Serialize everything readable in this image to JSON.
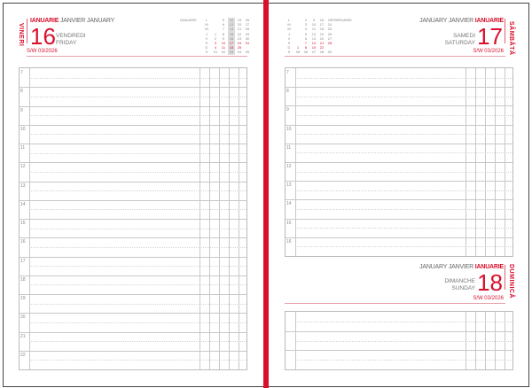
{
  "left_page": {
    "weekday_ro": "VINERI",
    "month_ro": "IANUARIE",
    "month_fr_en": "JANVIER JANUARY",
    "day": "16",
    "weekday_fr": "VENDREDI",
    "weekday_en": "FRIDAY",
    "week": "S/W 03/2026",
    "calendar": {
      "month": "IANUARIE",
      "letters": [
        "L",
        "M",
        "M",
        "J",
        "V",
        "S",
        "D",
        "S"
      ],
      "weeks": [
        [
          "",
          "",
          "",
          "1",
          "2",
          "3",
          "4",
          "01"
        ],
        [
          "5",
          "6",
          "7",
          "8",
          "9",
          "10",
          "11",
          "02"
        ],
        [
          "12",
          "13",
          "14",
          "15",
          "16",
          "17",
          "18",
          "03"
        ],
        [
          "19",
          "20",
          "21",
          "22",
          "23",
          "24",
          "25",
          "04"
        ],
        [
          "26",
          "27",
          "28",
          "29",
          "30",
          "31",
          "",
          "05"
        ]
      ],
      "highlight_week": 2
    },
    "hours": [
      "7",
      "8",
      "9",
      "10",
      "11",
      "12",
      "13",
      "14",
      "15",
      "16",
      "17",
      "18",
      "19",
      "20",
      "21",
      "22"
    ]
  },
  "right_page": {
    "calendar": {
      "month": "FEBRUARIE",
      "letters": [
        "L",
        "M",
        "M",
        "J",
        "V",
        "S",
        "D",
        "S"
      ],
      "weeks": [
        [
          "",
          "",
          "",
          "",
          "",
          "",
          "1",
          "05"
        ],
        [
          "2",
          "3",
          "4",
          "5",
          "6",
          "7",
          "8",
          "06"
        ],
        [
          "9",
          "10",
          "11",
          "12",
          "13",
          "14",
          "15",
          "07"
        ],
        [
          "16",
          "17",
          "18",
          "19",
          "20",
          "21",
          "22",
          "08"
        ],
        [
          "23",
          "24",
          "25",
          "26",
          "27",
          "28",
          "",
          "09"
        ]
      ]
    },
    "sat": {
      "weekday_ro": "SÂMBĂTĂ",
      "month_ro": "IANUARIE",
      "month_fr_en": "JANUARY JANVIER",
      "day": "17",
      "weekday_fr": "SAMEDI",
      "weekday_en": "SATURDAY",
      "week": "S/W 03/2026"
    },
    "sun": {
      "weekday_ro": "DUMINICĂ",
      "month_ro": "IANUARIE",
      "month_fr_en": "JANUARY JANVIER",
      "day": "18",
      "weekday_fr": "DIMANCHE",
      "weekday_en": "SUNDAY",
      "week": "S/W 03/2026"
    },
    "hours": [
      "7",
      "8",
      "9",
      "10",
      "11",
      "12",
      "13",
      "14",
      "15",
      "16"
    ]
  },
  "colors": {
    "accent": "#d8102c"
  }
}
